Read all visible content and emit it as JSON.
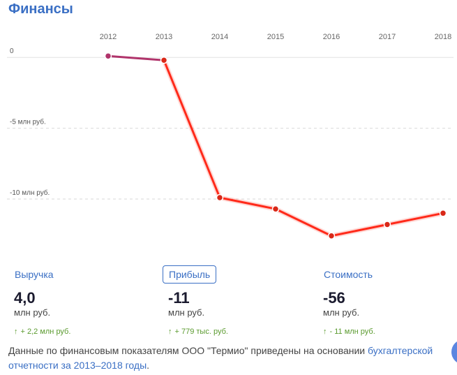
{
  "title": "Финансы",
  "chart_data": {
    "type": "line",
    "x": [
      "2012",
      "2013",
      "2014",
      "2015",
      "2016",
      "2017",
      "2018"
    ],
    "series": [
      {
        "values": [
          0.1,
          -0.2,
          -9.9,
          -10.7,
          -12.6,
          -11.8,
          -11.0
        ]
      }
    ],
    "y_ticks": [
      {
        "value": 0,
        "label": "0"
      },
      {
        "value": -5,
        "label": "-5 млн руб."
      },
      {
        "value": -10,
        "label": "-10 млн руб."
      }
    ],
    "ylim": [
      -13.5,
      0.8
    ],
    "grid": true,
    "colors": {
      "first_segment": "#b0346b",
      "line": "#ff2a1a",
      "points": "#d92818"
    }
  },
  "metrics": [
    {
      "label": "Выручка",
      "value": "4,0",
      "unit": "млн руб.",
      "delta": "+ 2,2 млн руб.",
      "arrow": "↑",
      "active": false
    },
    {
      "label": "Прибыль",
      "value": "-11",
      "unit": "млн руб.",
      "delta": "+ 779 тыс. руб.",
      "arrow": "↑",
      "active": true
    },
    {
      "label": "Стоимость",
      "value": "-56",
      "unit": "млн руб.",
      "delta": "- 11 млн руб.",
      "arrow": "↑",
      "active": false
    }
  ],
  "footer": {
    "text": "Данные по финансовым показателям ООО \"Термио\" приведены на основании ",
    "link": "бухгалтерской отчетности за 2013–2018 годы",
    "end": "."
  }
}
